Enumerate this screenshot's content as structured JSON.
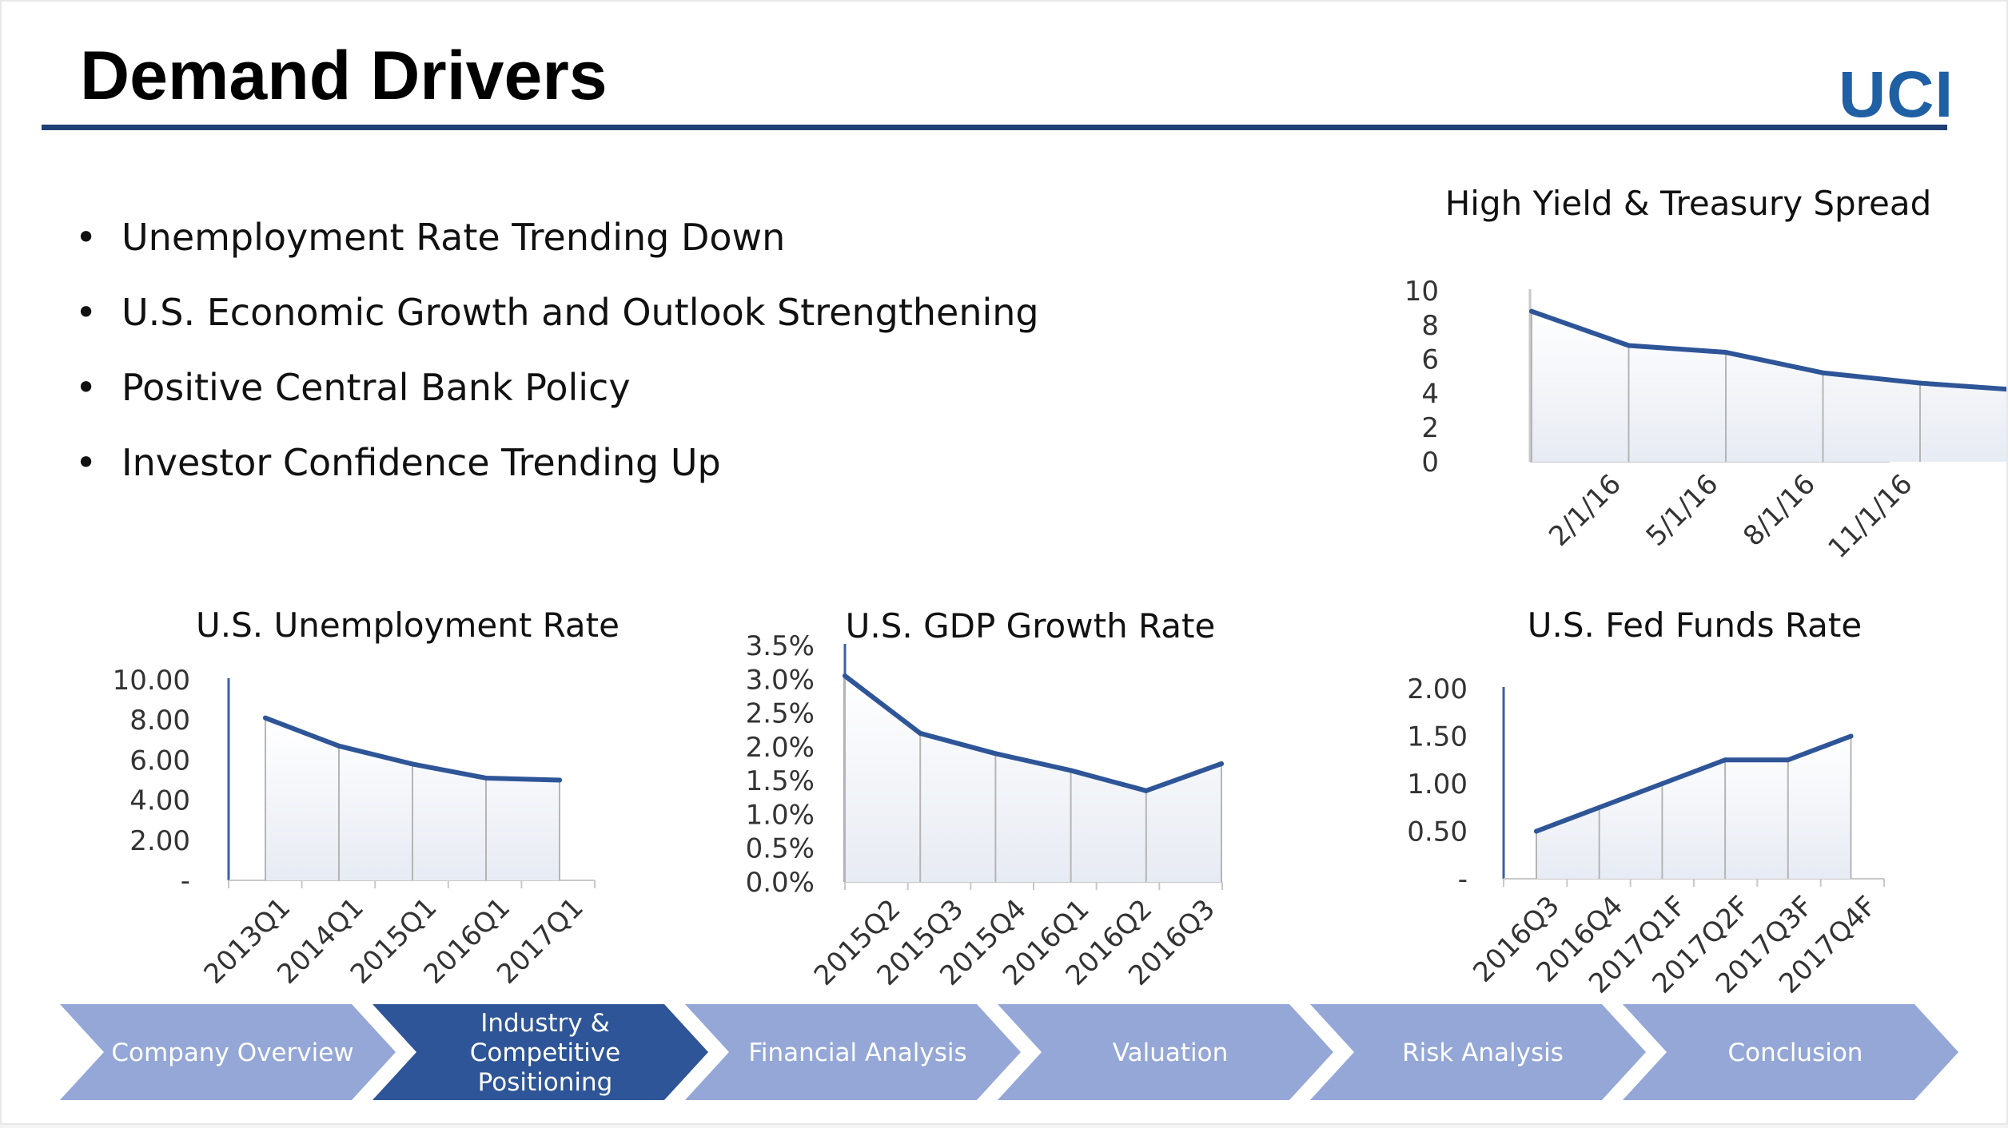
{
  "slide": {
    "title": "Demand Drivers",
    "logo_text": "UCI",
    "accent_color": "#1f3f77",
    "logo_color": "#1f5fa4",
    "line_color": "#2e5597"
  },
  "bullets": [
    "Unemployment Rate Trending Down",
    "U.S. Economic Growth and Outlook Strengthening",
    "Positive Central Bank Policy",
    "Investor Confidence Trending Up"
  ],
  "chart_data": [
    {
      "id": "spread",
      "type": "area",
      "title": "High Yield & Treasury Spread",
      "xlabel": "",
      "ylabel": "",
      "ylim": [
        0,
        10
      ],
      "yticks": [
        "0",
        "2",
        "4",
        "6",
        "8",
        "10"
      ],
      "x_tick_labels": [
        "2/1/16",
        "5/1/16",
        "8/1/16",
        "11/1/16"
      ],
      "x": [
        "1/1/16",
        "2/1/16",
        "5/1/16",
        "8/1/16",
        "11/1/16",
        "12/1/16"
      ],
      "values": [
        8.8,
        6.8,
        6.4,
        5.2,
        4.6,
        4.2
      ]
    },
    {
      "id": "unemployment",
      "type": "area",
      "title": "U.S. Unemployment Rate",
      "xlabel": "",
      "ylabel": "",
      "ylim": [
        0,
        10
      ],
      "yticks": [
        "-",
        "2.00",
        "4.00",
        "6.00",
        "8.00",
        "10.00"
      ],
      "categories": [
        "2013Q1",
        "2014Q1",
        "2015Q1",
        "2016Q1",
        "2017Q1"
      ],
      "values": [
        8.1,
        6.7,
        5.8,
        5.1,
        5.0
      ]
    },
    {
      "id": "gdp",
      "type": "area",
      "title": "U.S. GDP Growth Rate",
      "xlabel": "",
      "ylabel": "",
      "ylim": [
        0,
        3.5
      ],
      "yticks": [
        "0.0%",
        "0.5%",
        "1.0%",
        "1.5%",
        "2.0%",
        "2.5%",
        "3.0%",
        "3.5%"
      ],
      "categories": [
        "2015Q2",
        "2015Q3",
        "2015Q4",
        "2016Q1",
        "2016Q2",
        "2016Q3"
      ],
      "values": [
        3.05,
        2.2,
        1.9,
        1.65,
        1.35,
        1.75
      ]
    },
    {
      "id": "fedfunds",
      "type": "area",
      "title": "U.S. Fed Funds Rate",
      "xlabel": "",
      "ylabel": "",
      "ylim": [
        0,
        2
      ],
      "yticks": [
        "-",
        "0.50",
        "1.00",
        "1.50",
        "2.00"
      ],
      "categories": [
        "2016Q3",
        "2016Q4",
        "2017Q1F",
        "2017Q2F",
        "2017Q3F",
        "2017Q4F"
      ],
      "values": [
        0.5,
        0.75,
        1.0,
        1.25,
        1.25,
        1.5
      ]
    }
  ],
  "nav": {
    "items": [
      {
        "label": "Company Overview",
        "active": false
      },
      {
        "label": "Industry &\nCompetitive\nPositioning",
        "active": true
      },
      {
        "label": "Financial Analysis",
        "active": false
      },
      {
        "label": "Valuation",
        "active": false
      },
      {
        "label": "Risk Analysis",
        "active": false
      },
      {
        "label": "Conclusion",
        "active": false
      }
    ],
    "inactive_color": "#94a7d6",
    "active_color": "#2e5597"
  }
}
